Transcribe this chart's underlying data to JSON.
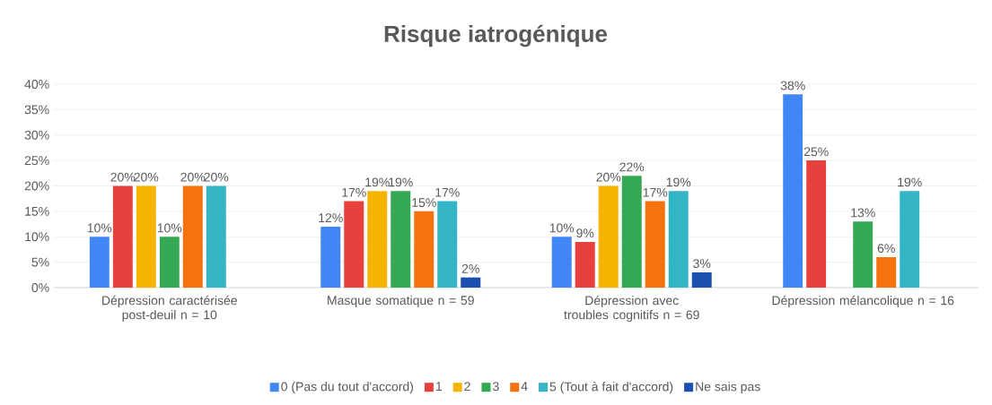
{
  "chart_data": {
    "type": "bar",
    "title": "Risque iatrogénique",
    "categories": [
      "Dépression caractérisée post-deuil n = 10",
      "Masque somatique n = 59",
      "Dépression avec troubles cognitifs n = 69",
      "Dépression mélancolique n = 16"
    ],
    "ylim": [
      0,
      40
    ],
    "yticks": [
      {
        "value": 0,
        "label": "0%"
      },
      {
        "value": 5,
        "label": "5%"
      },
      {
        "value": 10,
        "label": "10%"
      },
      {
        "value": 15,
        "label": "15%"
      },
      {
        "value": 20,
        "label": "20%"
      },
      {
        "value": 25,
        "label": "25%"
      },
      {
        "value": 30,
        "label": "30%"
      },
      {
        "value": 35,
        "label": "35%"
      },
      {
        "value": 40,
        "label": "40%"
      }
    ],
    "grid": "y",
    "legend": "bottom",
    "series": [
      {
        "name": "0 (Pas du tout d'accord)",
        "color": "#4285f4",
        "values": [
          10,
          12,
          10,
          38
        ],
        "value_labels": [
          "10%",
          "12%",
          "10%",
          "38%"
        ]
      },
      {
        "name": "1",
        "color": "#e8403c",
        "values": [
          20,
          17,
          9,
          25
        ],
        "value_labels": [
          "20%",
          "17%",
          "9%",
          "25%"
        ]
      },
      {
        "name": "2",
        "color": "#f4b400",
        "values": [
          20,
          19,
          20,
          0
        ],
        "value_labels": [
          "20%",
          "19%",
          "20%",
          null
        ]
      },
      {
        "name": "3",
        "color": "#34a853",
        "values": [
          10,
          19,
          22,
          13
        ],
        "value_labels": [
          "10%",
          "19%",
          "22%",
          "13%"
        ]
      },
      {
        "name": "4",
        "color": "#f5720f",
        "values": [
          20,
          15,
          17,
          6
        ],
        "value_labels": [
          "20%",
          "15%",
          "17%",
          "6%"
        ]
      },
      {
        "name": "5 (Tout à fait d'accord)",
        "color": "#33b5c5",
        "values": [
          20,
          17,
          19,
          19
        ],
        "value_labels": [
          "20%",
          "17%",
          "19%",
          "19%"
        ]
      },
      {
        "name": "Ne sais pas",
        "color": "#1c4fb0",
        "values": [
          0,
          2,
          3,
          0
        ],
        "value_labels": [
          null,
          "2%",
          "3%",
          null
        ]
      }
    ]
  }
}
